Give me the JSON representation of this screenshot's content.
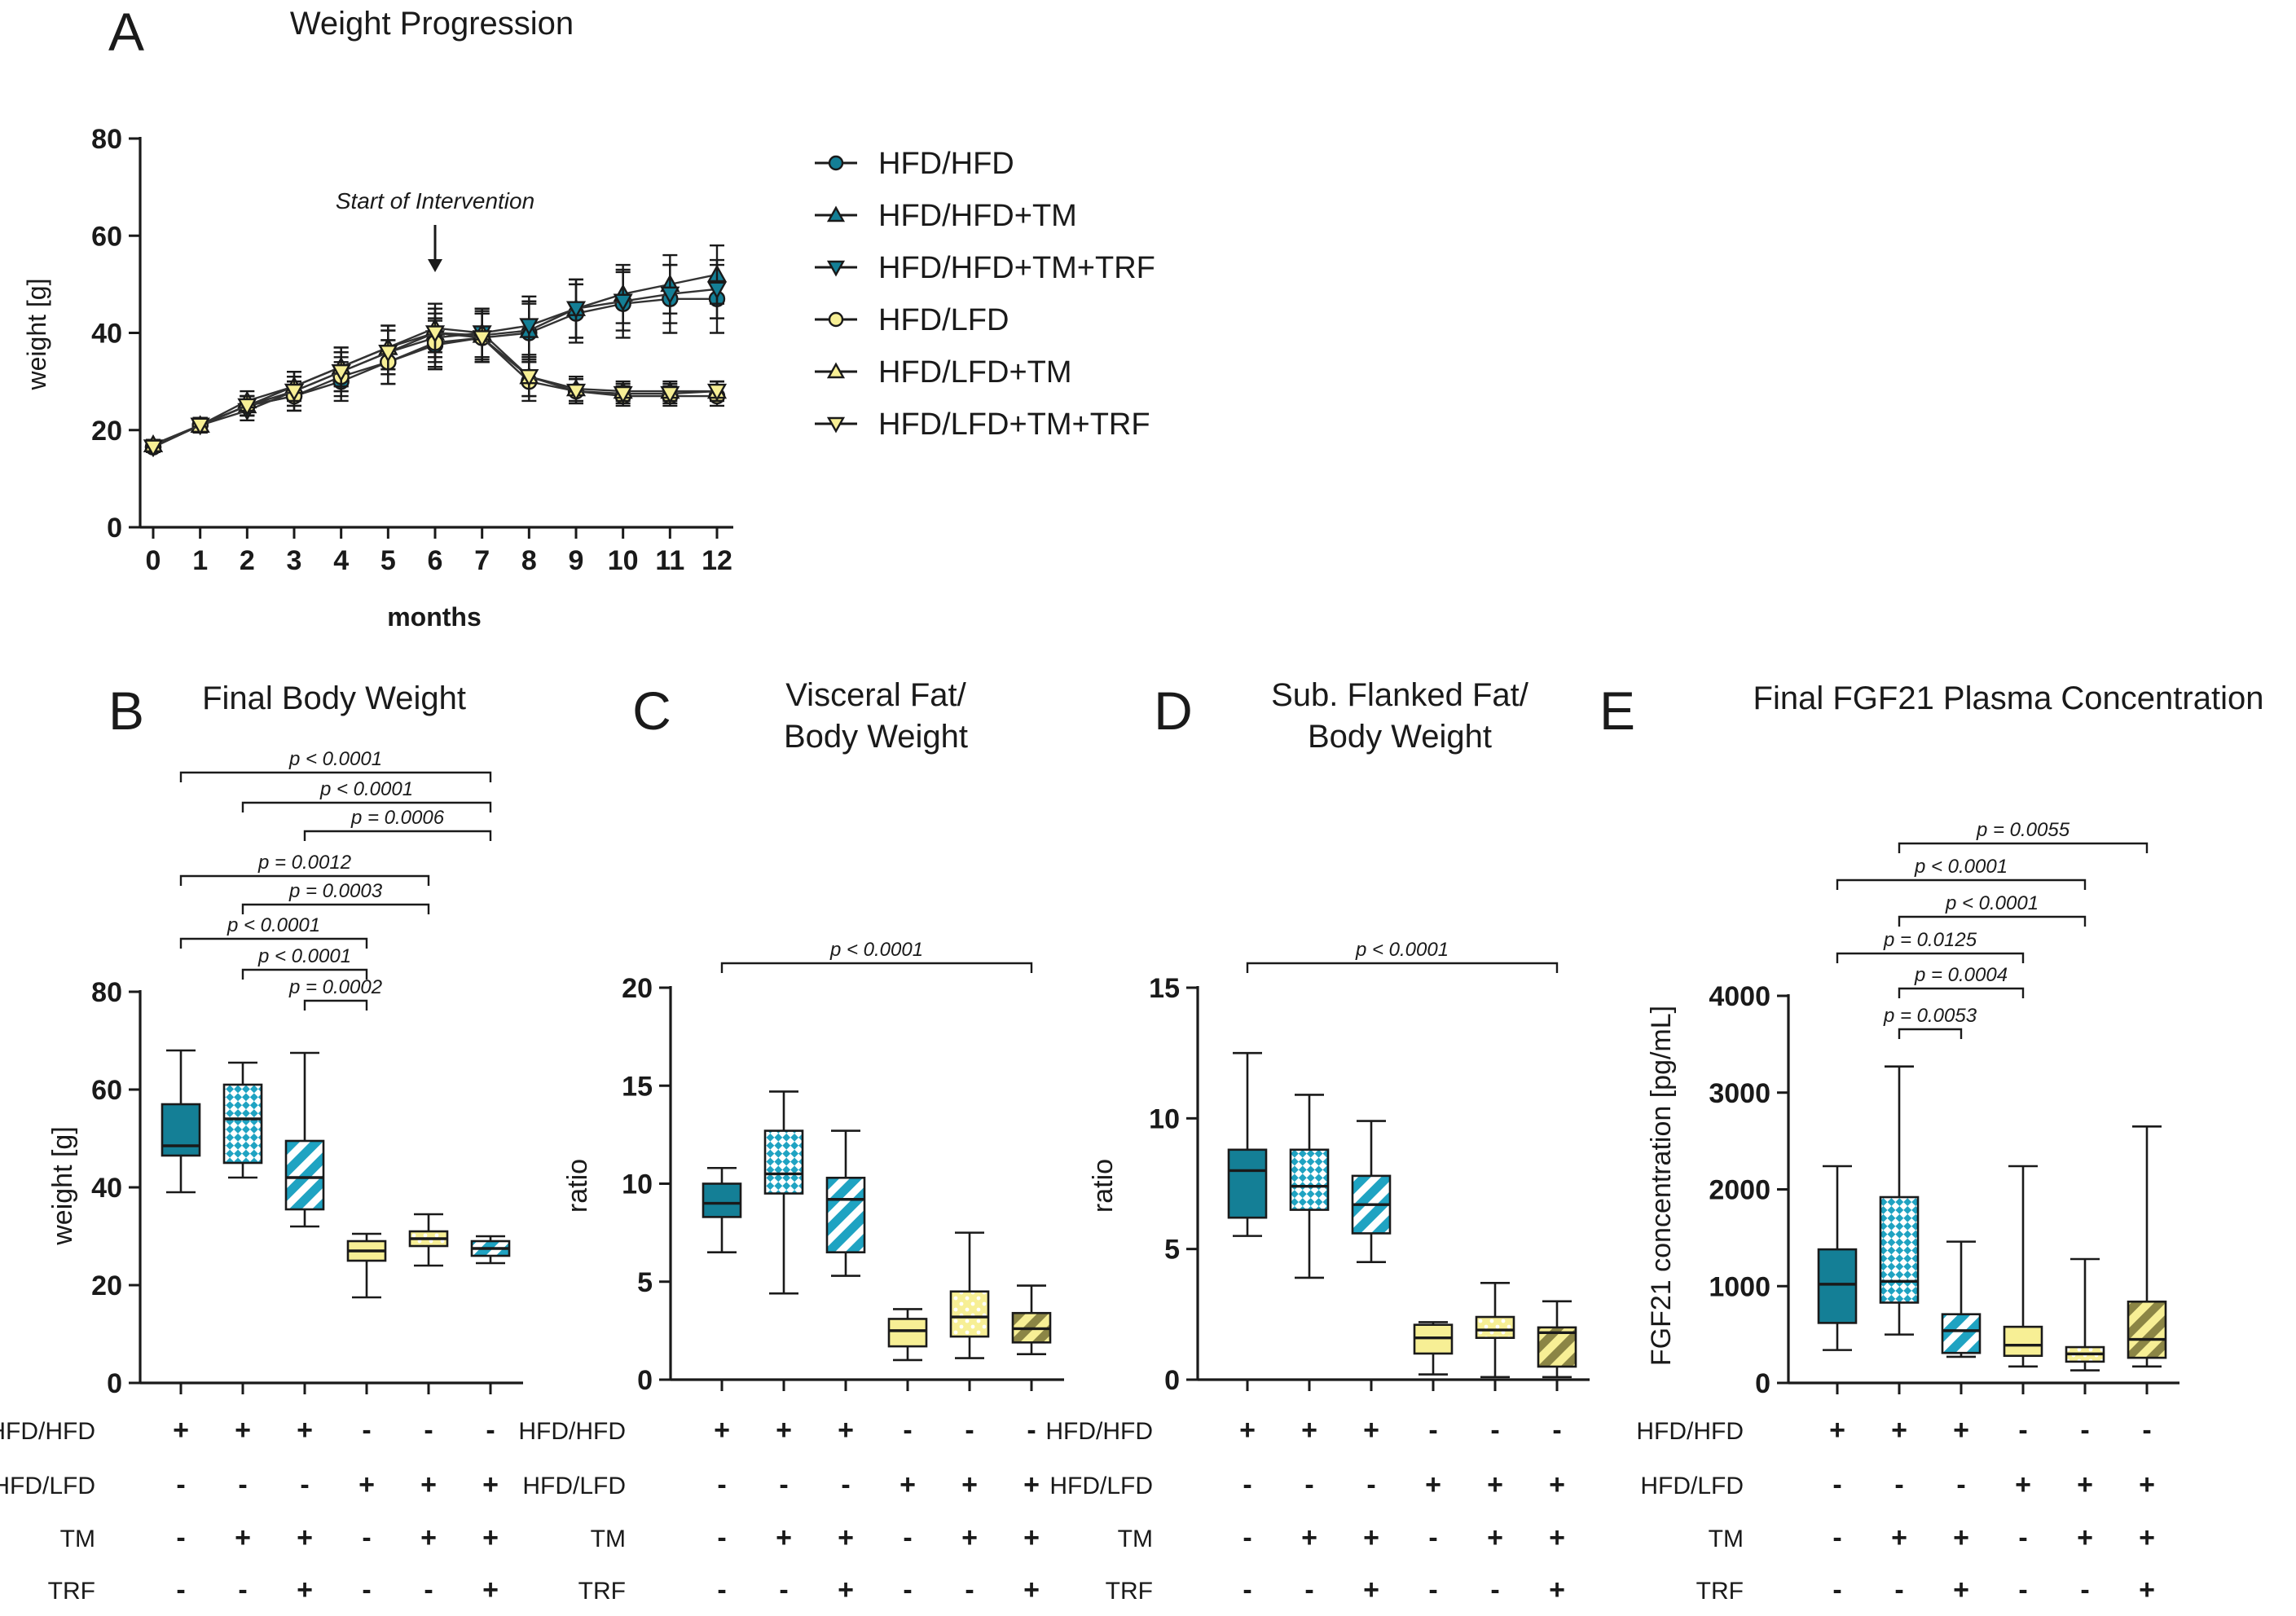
{
  "colors": {
    "teal": "#147f96",
    "teal_light": "#1fa3c2",
    "yellow": "#f7ef95",
    "olive": "#8b8545",
    "axis": "#1a1a1a"
  },
  "chart_data": [
    {
      "id": "A",
      "type": "line",
      "panel_letter": "A",
      "title": "Weight Progression",
      "xlabel": "months",
      "ylabel": "weight [g]",
      "xlim": [
        0,
        12
      ],
      "ylim": [
        0,
        80
      ],
      "xticks": [
        "0",
        "1",
        "2",
        "3",
        "4",
        "5",
        "6",
        "7",
        "8",
        "9",
        "10",
        "11",
        "12"
      ],
      "yticks": [
        "0",
        "20",
        "40",
        "60",
        "80"
      ],
      "annotation": "Start of Intervention",
      "annotation_x": 6,
      "x": [
        0,
        1,
        2,
        3,
        4,
        5,
        6,
        7,
        8,
        9,
        10,
        11,
        12
      ],
      "series": [
        {
          "name": "HFD/HFD",
          "marker": "circle",
          "color": "#147f96",
          "values": [
            16.5,
            21,
            25,
            27,
            30,
            34,
            37.5,
            39,
            40,
            44,
            46,
            47,
            47
          ],
          "err": [
            1,
            1.5,
            2,
            3,
            4,
            4.5,
            5,
            5,
            6,
            6,
            7,
            7,
            7
          ]
        },
        {
          "name": "HFD/HFD+TM",
          "marker": "triangle-up",
          "color": "#147f96",
          "values": [
            17,
            21,
            25,
            29,
            33,
            37,
            40,
            39.5,
            40.5,
            45,
            48,
            50,
            52
          ],
          "err": [
            1,
            1.5,
            2,
            3,
            4,
            4.5,
            5,
            5,
            6,
            6,
            6,
            6,
            6
          ]
        },
        {
          "name": "HFD/HFD+TM+TRF",
          "marker": "triangle-down",
          "color": "#147f96",
          "values": [
            16.5,
            21,
            24,
            28,
            32,
            36,
            39,
            40,
            41.5,
            45,
            46.5,
            48,
            49
          ],
          "err": [
            1,
            1.5,
            2,
            3,
            4,
            4.5,
            5,
            5,
            6,
            6,
            6,
            6,
            6
          ]
        },
        {
          "name": "HFD/LFD",
          "marker": "circle",
          "color": "#f7ef95",
          "values": [
            16.5,
            21,
            25,
            27,
            31,
            34,
            38,
            39,
            30,
            28,
            27,
            27,
            27
          ],
          "err": [
            1,
            1.5,
            2,
            3,
            4,
            4.5,
            5,
            5,
            4,
            2.5,
            2,
            2,
            2
          ]
        },
        {
          "name": "HFD/LFD+TM",
          "marker": "triangle-up",
          "color": "#f7ef95",
          "values": [
            17,
            21,
            26,
            29,
            33,
            37,
            41,
            40,
            31,
            28.5,
            28,
            28,
            28
          ],
          "err": [
            1,
            1.5,
            2,
            3,
            4,
            4.5,
            5,
            5,
            4,
            2.5,
            2,
            2,
            2
          ]
        },
        {
          "name": "HFD/LFD+TM+TRF",
          "marker": "triangle-down",
          "color": "#f7ef95",
          "values": [
            16.5,
            21,
            25,
            28,
            32,
            36,
            40,
            39,
            31,
            28,
            27.5,
            27.5,
            28
          ],
          "err": [
            1,
            1.5,
            2,
            3,
            4,
            4.5,
            5,
            5,
            4,
            2.5,
            2,
            2,
            2
          ]
        }
      ]
    },
    {
      "id": "B",
      "type": "box",
      "panel_letter": "B",
      "title": [
        "Final Body Weight"
      ],
      "ylabel": "weight [g]",
      "ylim": [
        0,
        80
      ],
      "yticks": [
        "0",
        "20",
        "40",
        "60",
        "80"
      ],
      "groups": [
        {
          "fill": "teal",
          "pattern": "solid",
          "min": 39,
          "q1": 46.5,
          "median": 48.5,
          "q3": 57,
          "max": 68
        },
        {
          "fill": "teal",
          "pattern": "checker",
          "min": 42,
          "q1": 45,
          "median": 54,
          "q3": 61,
          "max": 65.5
        },
        {
          "fill": "teal",
          "pattern": "stripe",
          "min": 32,
          "q1": 35.5,
          "median": 42,
          "q3": 49.5,
          "max": 67.5
        },
        {
          "fill": "yellow",
          "pattern": "solid",
          "min": 17.5,
          "q1": 25,
          "median": 27,
          "q3": 29,
          "max": 30.5
        },
        {
          "fill": "yellow",
          "pattern": "dots",
          "min": 24,
          "q1": 28,
          "median": 29.5,
          "q3": 31,
          "max": 34.5
        },
        {
          "fill": "yellow",
          "pattern": "stripe",
          "min": 24.5,
          "q1": 26,
          "median": 27.5,
          "q3": 29,
          "max": 30
        }
      ],
      "comparisons": [
        {
          "from": 0,
          "to": 5,
          "label": "p < 0.0001"
        },
        {
          "from": 1,
          "to": 5,
          "label": "p < 0.0001"
        },
        {
          "from": 2,
          "to": 5,
          "label": "p = 0.0006"
        },
        {
          "from": 0,
          "to": 4,
          "label": "p = 0.0012"
        },
        {
          "from": 1,
          "to": 4,
          "label": "p = 0.0003"
        },
        {
          "from": 0,
          "to": 3,
          "label": "p < 0.0001"
        },
        {
          "from": 1,
          "to": 3,
          "label": "p < 0.0001"
        },
        {
          "from": 2,
          "to": 3,
          "label": "p = 0.0002"
        }
      ],
      "conditions": [
        {
          "label": "HFD/HFD",
          "values": [
            "+",
            "+",
            "+",
            "-",
            "-",
            "-"
          ]
        },
        {
          "label": "HFD/LFD",
          "values": [
            "-",
            "-",
            "-",
            "+",
            "+",
            "+"
          ]
        },
        {
          "label": "TM",
          "values": [
            "-",
            "+",
            "+",
            "-",
            "+",
            "+"
          ]
        },
        {
          "label": "TRF",
          "values": [
            "-",
            "-",
            "+",
            "-",
            "-",
            "+"
          ]
        }
      ]
    },
    {
      "id": "C",
      "type": "box",
      "panel_letter": "C",
      "title": [
        "Visceral Fat/",
        "Body Weight"
      ],
      "ylabel": "ratio",
      "ylim": [
        0,
        20
      ],
      "yticks": [
        "0",
        "5",
        "10",
        "15",
        "20"
      ],
      "groups": [
        {
          "fill": "teal",
          "pattern": "solid",
          "min": 6.5,
          "q1": 8.3,
          "median": 9,
          "q3": 10,
          "max": 10.8
        },
        {
          "fill": "teal",
          "pattern": "checker",
          "min": 4.4,
          "q1": 9.5,
          "median": 10.5,
          "q3": 12.7,
          "max": 14.7
        },
        {
          "fill": "teal",
          "pattern": "stripe",
          "min": 5.3,
          "q1": 6.5,
          "median": 9.2,
          "q3": 10.3,
          "max": 12.7
        },
        {
          "fill": "yellow",
          "pattern": "solid",
          "min": 1,
          "q1": 1.7,
          "median": 2.5,
          "q3": 3.1,
          "max": 3.6
        },
        {
          "fill": "yellow",
          "pattern": "dots",
          "min": 1.1,
          "q1": 2.2,
          "median": 3.2,
          "q3": 4.5,
          "max": 7.5
        },
        {
          "fill": "olive",
          "pattern": "stripe",
          "min": 1.3,
          "q1": 1.9,
          "median": 2.6,
          "q3": 3.4,
          "max": 4.8
        }
      ],
      "comparisons": [
        {
          "from": 0,
          "to": 5,
          "label": "p < 0.0001"
        }
      ],
      "conditions": [
        {
          "label": "HFD/HFD",
          "values": [
            "+",
            "+",
            "+",
            "-",
            "-",
            "-"
          ]
        },
        {
          "label": "HFD/LFD",
          "values": [
            "-",
            "-",
            "-",
            "+",
            "+",
            "+"
          ]
        },
        {
          "label": "TM",
          "values": [
            "-",
            "+",
            "+",
            "-",
            "+",
            "+"
          ]
        },
        {
          "label": "TRF",
          "values": [
            "-",
            "-",
            "+",
            "-",
            "-",
            "+"
          ]
        }
      ]
    },
    {
      "id": "D",
      "type": "box",
      "panel_letter": "D",
      "title": [
        "Sub. Flanked Fat/",
        "Body Weight"
      ],
      "ylabel": "ratio",
      "ylim": [
        0,
        15
      ],
      "yticks": [
        "0",
        "5",
        "10",
        "15"
      ],
      "groups": [
        {
          "fill": "teal",
          "pattern": "solid",
          "min": 5.5,
          "q1": 6.2,
          "median": 8,
          "q3": 8.8,
          "max": 12.5
        },
        {
          "fill": "teal",
          "pattern": "checker",
          "min": 3.9,
          "q1": 6.5,
          "median": 7.4,
          "q3": 8.8,
          "max": 10.9
        },
        {
          "fill": "teal",
          "pattern": "stripe",
          "min": 4.5,
          "q1": 5.6,
          "median": 6.7,
          "q3": 7.8,
          "max": 9.9
        },
        {
          "fill": "yellow",
          "pattern": "solid",
          "min": 0.2,
          "q1": 1,
          "median": 1.6,
          "q3": 2.1,
          "max": 2.2
        },
        {
          "fill": "yellow",
          "pattern": "dots",
          "min": 0.1,
          "q1": 1.6,
          "median": 1.9,
          "q3": 2.4,
          "max": 3.7
        },
        {
          "fill": "olive",
          "pattern": "stripe",
          "min": 0.1,
          "q1": 0.5,
          "median": 1.8,
          "q3": 2,
          "max": 3
        }
      ],
      "comparisons": [
        {
          "from": 0,
          "to": 5,
          "label": "p < 0.0001"
        }
      ],
      "conditions": [
        {
          "label": "HFD/HFD",
          "values": [
            "+",
            "+",
            "+",
            "-",
            "-",
            "-"
          ]
        },
        {
          "label": "HFD/LFD",
          "values": [
            "-",
            "-",
            "-",
            "+",
            "+",
            "+"
          ]
        },
        {
          "label": "TM",
          "values": [
            "-",
            "+",
            "+",
            "-",
            "+",
            "+"
          ]
        },
        {
          "label": "TRF",
          "values": [
            "-",
            "-",
            "+",
            "-",
            "-",
            "+"
          ]
        }
      ]
    },
    {
      "id": "E",
      "type": "box",
      "panel_letter": "E",
      "title": [
        "Final FGF21 Plasma Concentration"
      ],
      "ylabel": "FGF21 concentration [pg/mL]",
      "ylim": [
        0,
        4000
      ],
      "yticks": [
        "0",
        "1000",
        "2000",
        "3000",
        "4000"
      ],
      "groups": [
        {
          "fill": "teal",
          "pattern": "solid",
          "min": 340,
          "q1": 620,
          "median": 1020,
          "q3": 1380,
          "max": 2240
        },
        {
          "fill": "teal",
          "pattern": "checker",
          "min": 500,
          "q1": 830,
          "median": 1050,
          "q3": 1920,
          "max": 3270
        },
        {
          "fill": "teal",
          "pattern": "stripe",
          "min": 270,
          "q1": 310,
          "median": 540,
          "q3": 710,
          "max": 1460
        },
        {
          "fill": "yellow",
          "pattern": "solid",
          "min": 170,
          "q1": 280,
          "median": 390,
          "q3": 580,
          "max": 2240
        },
        {
          "fill": "yellow",
          "pattern": "dots",
          "min": 130,
          "q1": 220,
          "median": 300,
          "q3": 370,
          "max": 1280
        },
        {
          "fill": "olive",
          "pattern": "stripe",
          "min": 170,
          "q1": 260,
          "median": 450,
          "q3": 840,
          "max": 2650
        }
      ],
      "comparisons": [
        {
          "from": 1,
          "to": 5,
          "label": "p = 0.0055"
        },
        {
          "from": 0,
          "to": 4,
          "label": "p < 0.0001"
        },
        {
          "from": 1,
          "to": 4,
          "label": "p < 0.0001"
        },
        {
          "from": 0,
          "to": 3,
          "label": "p = 0.0125"
        },
        {
          "from": 1,
          "to": 3,
          "label": "p = 0.0004"
        },
        {
          "from": 1,
          "to": 2,
          "label": "p = 0.0053"
        }
      ],
      "conditions": [
        {
          "label": "HFD/HFD",
          "values": [
            "+",
            "+",
            "+",
            "-",
            "-",
            "-"
          ]
        },
        {
          "label": "HFD/LFD",
          "values": [
            "-",
            "-",
            "-",
            "+",
            "+",
            "+"
          ]
        },
        {
          "label": "TM",
          "values": [
            "-",
            "+",
            "+",
            "-",
            "+",
            "+"
          ]
        },
        {
          "label": "TRF",
          "values": [
            "-",
            "-",
            "+",
            "-",
            "-",
            "+"
          ]
        }
      ]
    }
  ]
}
